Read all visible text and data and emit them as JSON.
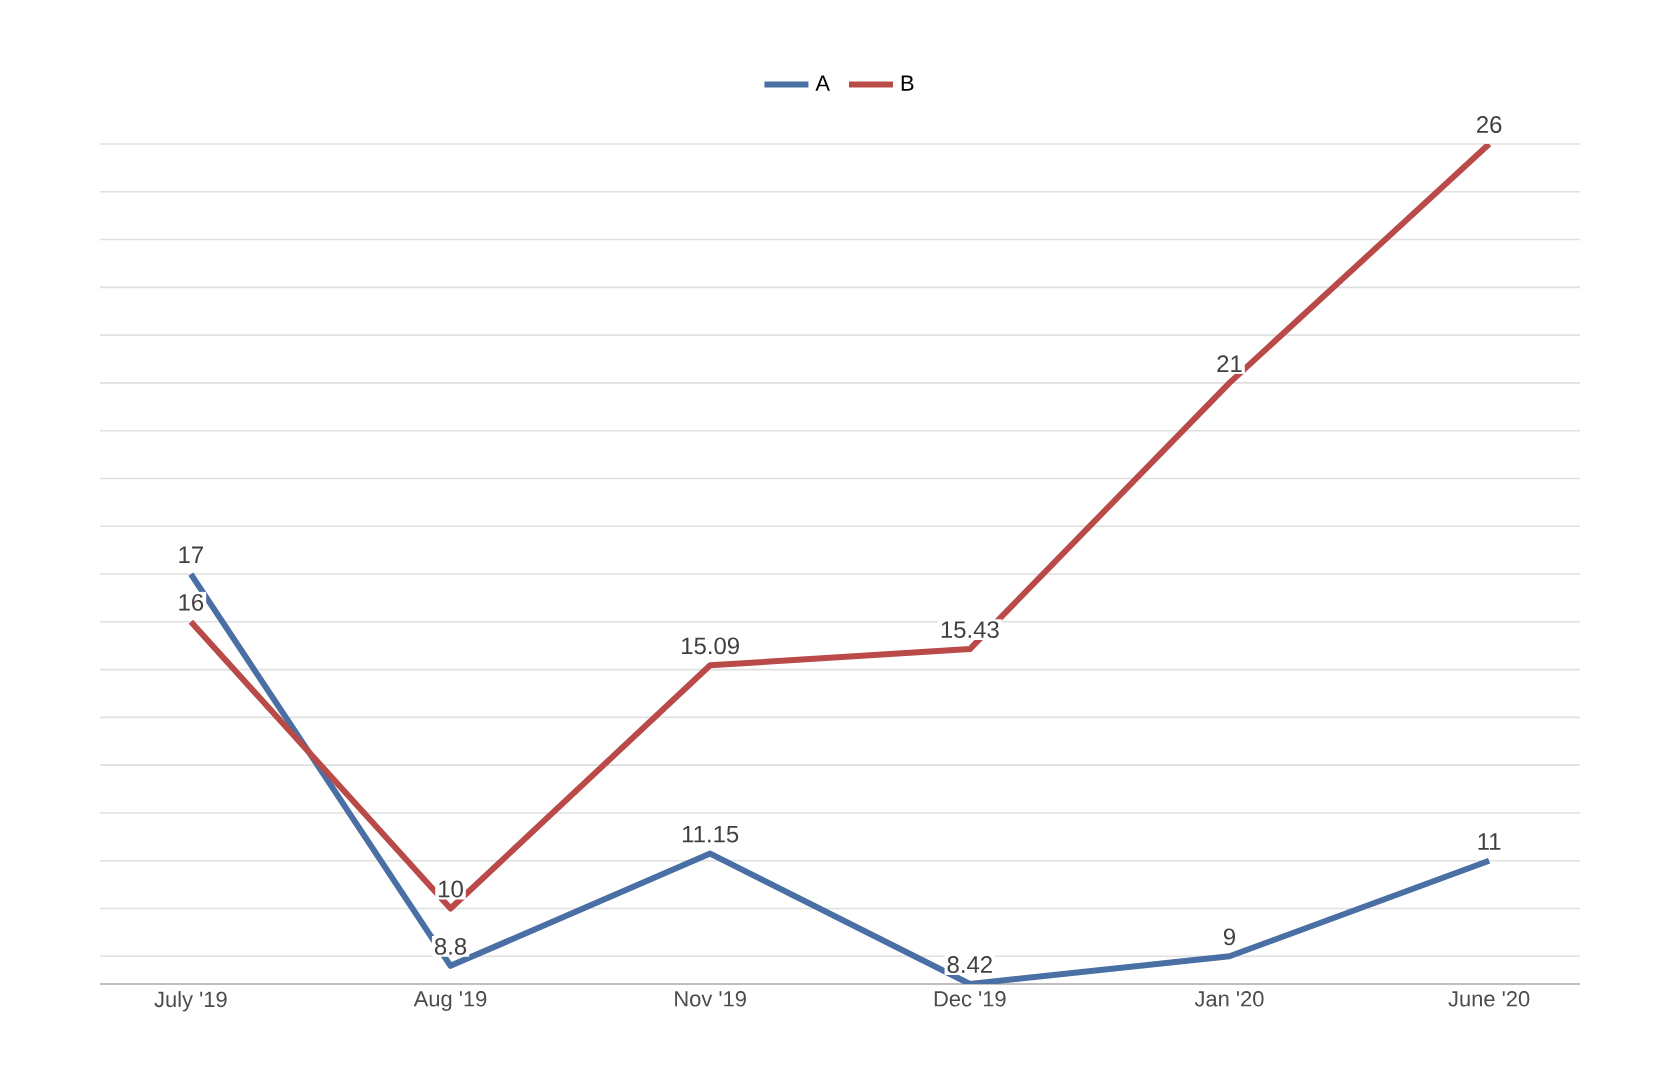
{
  "chart_data": {
    "type": "line",
    "categories": [
      "July '19",
      "Aug '19",
      "Nov '19",
      "Dec '19",
      "Jan '20",
      "June '20"
    ],
    "series": [
      {
        "name": "A",
        "color": "#4a6fa5",
        "values": [
          17,
          8.8,
          11.15,
          8.42,
          9,
          11
        ]
      },
      {
        "name": "B",
        "color": "#b94a48",
        "values": [
          16,
          10,
          15.09,
          15.43,
          21,
          26
        ]
      }
    ],
    "grid": "y",
    "legend": "top",
    "tick_labels": "x",
    "data_labels": true,
    "marker": "none",
    "line_style": "solid"
  }
}
